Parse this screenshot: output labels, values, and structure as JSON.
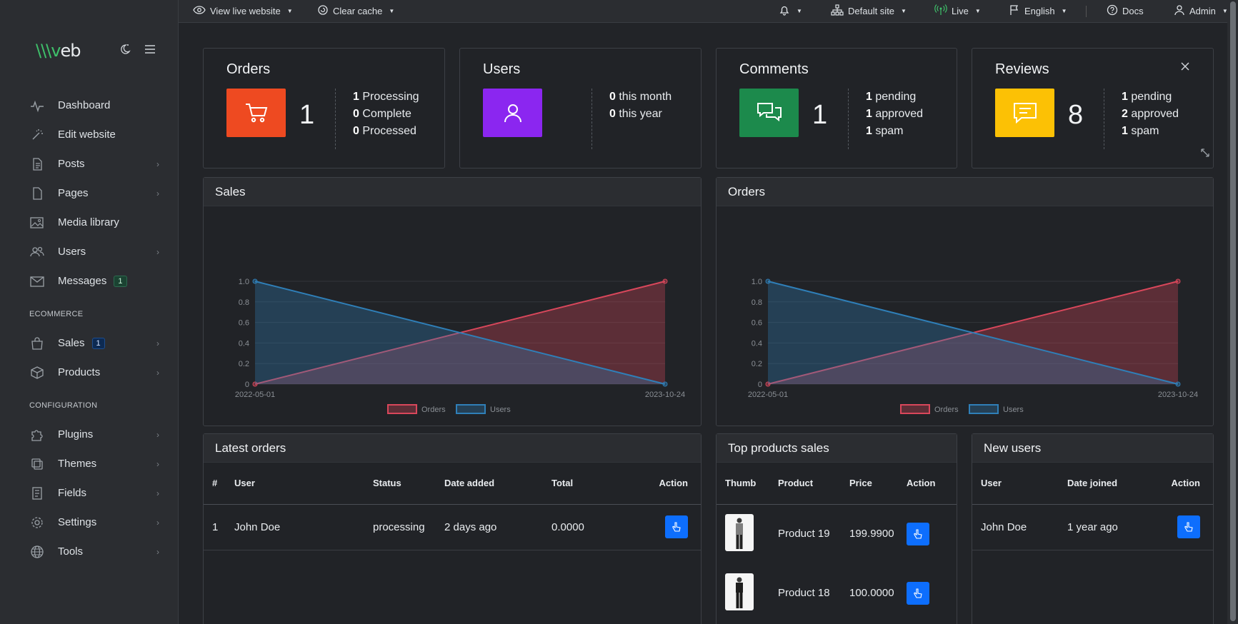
{
  "topbar": {
    "view_live": "View live website",
    "clear_cache": "Clear cache",
    "site": "Default site",
    "live": "Live",
    "language": "English",
    "docs": "Docs",
    "user": "Admin"
  },
  "sidebar": {
    "logo_a": "\\\\\\v",
    "logo_b": "eb",
    "items": [
      {
        "label": "Dashboard"
      },
      {
        "label": "Edit website"
      },
      {
        "label": "Posts"
      },
      {
        "label": "Pages"
      },
      {
        "label": "Media library"
      },
      {
        "label": "Users"
      },
      {
        "label": "Messages",
        "badge": "1"
      }
    ],
    "ecommerce_heading": "ECOMMERCE",
    "ecommerce": [
      {
        "label": "Sales",
        "badge": "1"
      },
      {
        "label": "Products"
      }
    ],
    "config_heading": "CONFIGURATION",
    "config": [
      {
        "label": "Plugins"
      },
      {
        "label": "Themes"
      },
      {
        "label": "Fields"
      },
      {
        "label": "Settings"
      },
      {
        "label": "Tools"
      }
    ]
  },
  "stats": {
    "orders": {
      "title": "Orders",
      "count": "1",
      "color": "#ee4a21",
      "lines": [
        {
          "n": "1",
          "t": "Processing"
        },
        {
          "n": "0",
          "t": "Complete"
        },
        {
          "n": "0",
          "t": "Processed"
        }
      ]
    },
    "users": {
      "title": "Users",
      "count": "",
      "color": "#8b26f0",
      "lines": [
        {
          "n": "0",
          "t": "this month"
        },
        {
          "n": "0",
          "t": "this year"
        }
      ]
    },
    "comments": {
      "title": "Comments",
      "count": "1",
      "color": "#1c8a4c",
      "lines": [
        {
          "n": "1",
          "t": "pending"
        },
        {
          "n": "1",
          "t": "approved"
        },
        {
          "n": "1",
          "t": "spam"
        }
      ]
    },
    "reviews": {
      "title": "Reviews",
      "count": "8",
      "color": "#fcc105",
      "lines": [
        {
          "n": "1",
          "t": "pending"
        },
        {
          "n": "2",
          "t": "approved"
        },
        {
          "n": "1",
          "t": "spam"
        }
      ]
    }
  },
  "charts_titles": {
    "sales": "Sales",
    "orders": "Orders"
  },
  "chart_data": [
    {
      "type": "area",
      "title": "Sales",
      "x": [
        "2022-05-01",
        "2023-10-24"
      ],
      "series": [
        {
          "name": "Orders",
          "values": [
            0,
            1
          ],
          "color": "#d9475b"
        },
        {
          "name": "Users",
          "values": [
            1,
            0
          ],
          "color": "#2f7fb8"
        }
      ],
      "ylim": [
        0,
        1
      ],
      "yticks": [
        "0",
        "0.2",
        "0.4",
        "0.6",
        "0.8",
        "1.0"
      ],
      "legend": "bottom"
    },
    {
      "type": "area",
      "title": "Orders",
      "x": [
        "2022-05-01",
        "2023-10-24"
      ],
      "series": [
        {
          "name": "Orders",
          "values": [
            0,
            1
          ],
          "color": "#d9475b"
        },
        {
          "name": "Users",
          "values": [
            1,
            0
          ],
          "color": "#2f7fb8"
        }
      ],
      "ylim": [
        0,
        1
      ],
      "yticks": [
        "0",
        "0.2",
        "0.4",
        "0.6",
        "0.8",
        "1.0"
      ],
      "legend": "bottom"
    }
  ],
  "latest_orders": {
    "title": "Latest orders",
    "headers": [
      "#",
      "User",
      "Status",
      "Date added",
      "Total",
      "Action"
    ],
    "rows": [
      {
        "id": "1",
        "user": "John Doe",
        "status": "processing",
        "date": "2 days ago",
        "total": "0.0000"
      }
    ]
  },
  "top_products": {
    "title": "Top products sales",
    "headers": [
      "Thumb",
      "Product",
      "Price",
      "Action"
    ],
    "rows": [
      {
        "product": "Product 19",
        "price": "199.9900"
      },
      {
        "product": "Product 18",
        "price": "100.0000"
      }
    ]
  },
  "new_users": {
    "title": "New users",
    "headers": [
      "User",
      "Date joined",
      "Action"
    ],
    "rows": [
      {
        "user": "John Doe",
        "joined": "1 year ago"
      }
    ]
  }
}
